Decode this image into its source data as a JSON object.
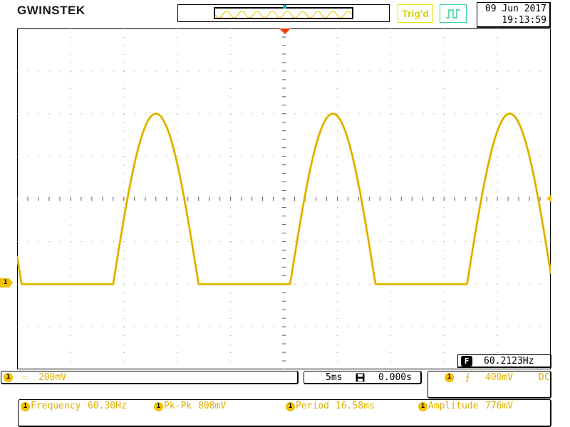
{
  "brand": {
    "name": "GWINSTEK"
  },
  "status": {
    "trigger": "Trig'd",
    "acquire_icon": "pulse-waveform-icon"
  },
  "datetime": {
    "date": "09 Jun 2017",
    "time": "19:13:59"
  },
  "frequency_counter": {
    "badge": "F",
    "value": "60.2123Hz"
  },
  "channel": {
    "number": "1",
    "coupling_icon": "dc-coupling-icon",
    "coupling_symbol": "⎓",
    "scale": "200mV"
  },
  "timebase": {
    "scale": "5ms",
    "stop_icon": "floppy-disk-icon",
    "position": "0.000s"
  },
  "trigger": {
    "source": "1",
    "slope_icon": "rising-edge-icon",
    "slope_symbol": "⨍",
    "level": "400mV",
    "coupling": "DC"
  },
  "measurements": [
    {
      "channel": "1",
      "label": "Frequency",
      "value": "60.30Hz"
    },
    {
      "channel": "1",
      "label": "Pk-Pk",
      "value": "808mV"
    },
    {
      "channel": "1",
      "label": "Period",
      "value": "16.58ms"
    },
    {
      "channel": "1",
      "label": "Amplitude",
      "value": "776mV"
    }
  ],
  "waveform": {
    "color": "#f0c000",
    "time_per_div_ms": 5,
    "volts_per_div_mv": 200,
    "period_ms": 16.58,
    "baseline_div_from_center": -2.0,
    "peak_div_from_center": 2.0,
    "first_rise_ms": 9.0,
    "conduction_ms": 8.0
  },
  "colors": {
    "ch1": "#f0c000",
    "trigger_marker": "#f03a10",
    "trig_status": "#d8d400",
    "acquire": "#2fd0a0"
  }
}
